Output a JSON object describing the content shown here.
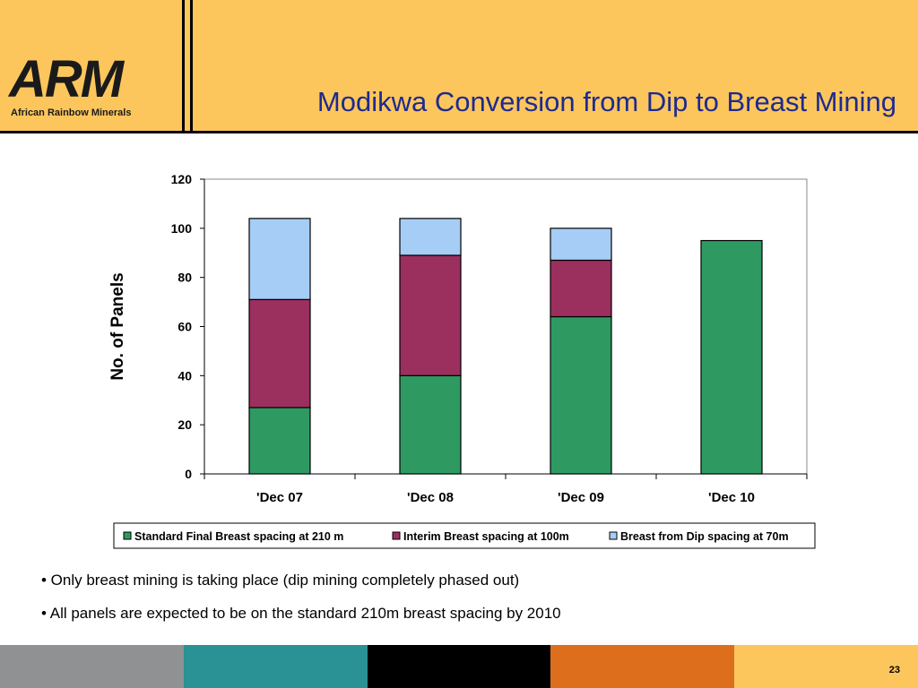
{
  "header": {
    "logo_text": "ARM",
    "logo_subtext": "African Rainbow Minerals",
    "title": "Modikwa Conversion from Dip to Breast Mining"
  },
  "chart_data": {
    "type": "bar",
    "stacked": true,
    "categories": [
      "'Dec 07",
      "'Dec 08",
      "'Dec 09",
      "'Dec 10"
    ],
    "series": [
      {
        "name": "Standard Final Breast spacing at 210 m",
        "values": [
          27,
          40,
          64,
          95
        ],
        "color": "#2e9a62"
      },
      {
        "name": "Interim Breast spacing at 100m",
        "values": [
          44,
          49,
          23,
          0
        ],
        "color": "#9b2f5e"
      },
      {
        "name": "Breast from Dip spacing at 70m",
        "values": [
          33,
          15,
          13,
          0
        ],
        "color": "#a6cdf5"
      }
    ],
    "ylabel": "No. of Panels",
    "ylim": [
      0,
      120
    ],
    "yticks": [
      0,
      20,
      40,
      60,
      80,
      100,
      120
    ],
    "grid": false,
    "legend": "bottom"
  },
  "bullets": [
    "• Only breast mining is taking place (dip mining completely phased out)",
    "• All panels are expected to be on the standard 210m breast spacing by 2010"
  ],
  "footer": {
    "colors": [
      "#8f9193",
      "#2a9195",
      "#000000",
      "#dc6e1c",
      "#fcc65c"
    ],
    "page_number": "23"
  }
}
